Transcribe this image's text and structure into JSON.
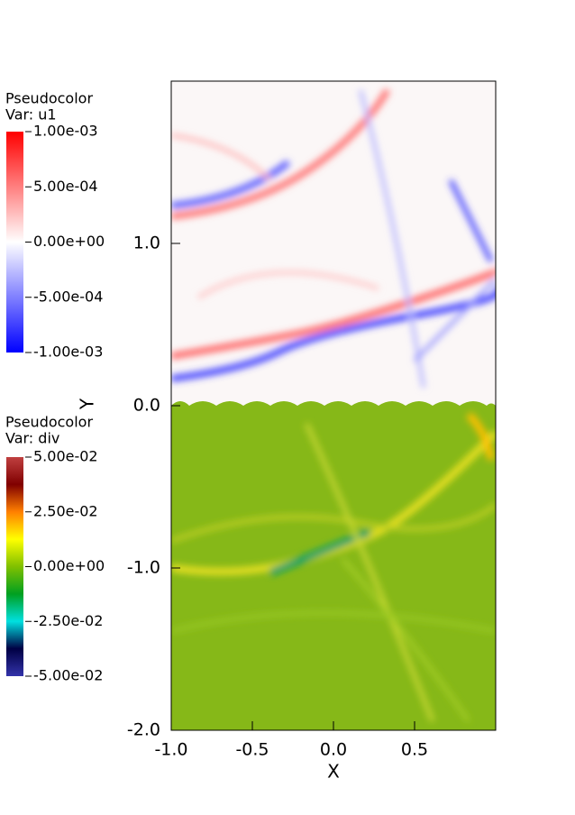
{
  "chart_data": {
    "type": "pseudocolor",
    "xlabel": "X",
    "ylabel": "Y",
    "xlim": [
      -1,
      1
    ],
    "ylim": [
      -2,
      2
    ],
    "xticks": [
      {
        "value": -1,
        "label": "-1.0"
      },
      {
        "value": -0.5,
        "label": "-0.5"
      },
      {
        "value": 0,
        "label": "0.0"
      },
      0.5
    ],
    "yticks": [
      {
        "value": -2,
        "label": "-2.0"
      },
      {
        "value": -1,
        "label": "-1.0"
      },
      {
        "value": 0,
        "label": "0.0"
      },
      {
        "value": 1,
        "label": "1.0"
      }
    ],
    "colorbars": [
      {
        "title": "Pseudocolor",
        "variable": "Var: u1",
        "range": [
          -0.001,
          0.001
        ],
        "colors": [
          "#0000ff",
          "#ffffff",
          "#ff0000"
        ],
        "ticks": [
          {
            "value": 0.001,
            "label": "1.00e-03"
          },
          {
            "value": 0.0005,
            "label": "5.00e-04"
          },
          {
            "value": 0,
            "label": "0.00e+00"
          },
          {
            "value": -0.0005,
            "label": "-5.00e-04"
          },
          {
            "value": -0.001,
            "label": "-1.00e-03"
          }
        ]
      },
      {
        "title": "Pseudocolor",
        "variable": "Var: div",
        "range": [
          -0.05,
          0.05
        ],
        "colors": [
          "#3333aa",
          "#000044",
          "#00e0e0",
          "#00a020",
          "#80c000",
          "#ffff00",
          "#ff8000",
          "#800000",
          "#c04040"
        ],
        "ticks": [
          {
            "value": 0.05,
            "label": "5.00e-02"
          },
          {
            "value": 0.025,
            "label": "2.50e-02"
          },
          {
            "value": 0,
            "label": "0.00e+00"
          },
          {
            "value": -0.025,
            "label": "-2.50e-02"
          },
          {
            "value": -0.05,
            "label": "-5.00e-02"
          }
        ]
      }
    ]
  }
}
